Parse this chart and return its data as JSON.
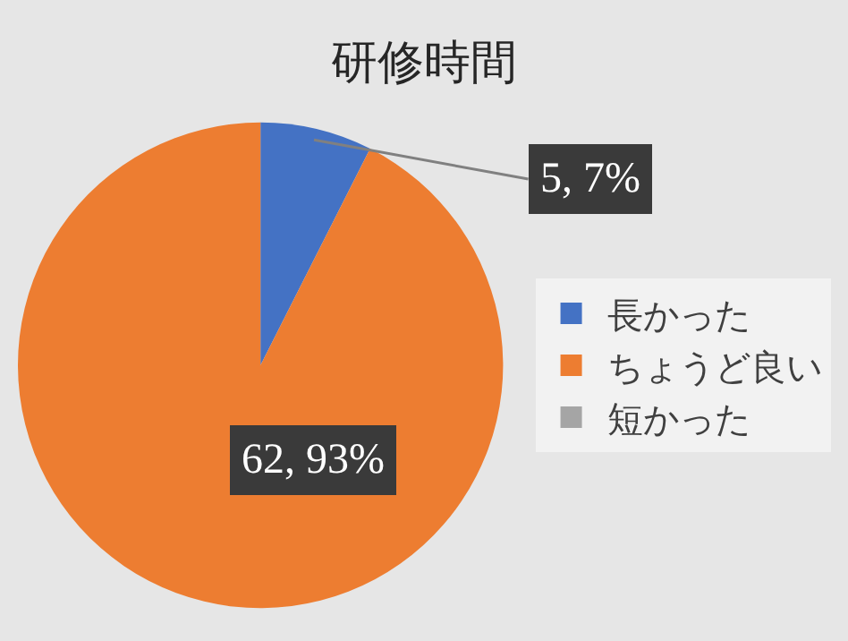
{
  "chart_data": {
    "type": "pie",
    "title": "研修時間",
    "categories": [
      "長かった",
      "ちょうど良い",
      "短かった"
    ],
    "values": [
      5,
      62,
      0
    ],
    "colors": [
      "#4472c4",
      "#ed7d31",
      "#a5a5a5"
    ],
    "value_labels": [
      "5, 7%",
      "62, 93%",
      null
    ],
    "legend": "right"
  }
}
